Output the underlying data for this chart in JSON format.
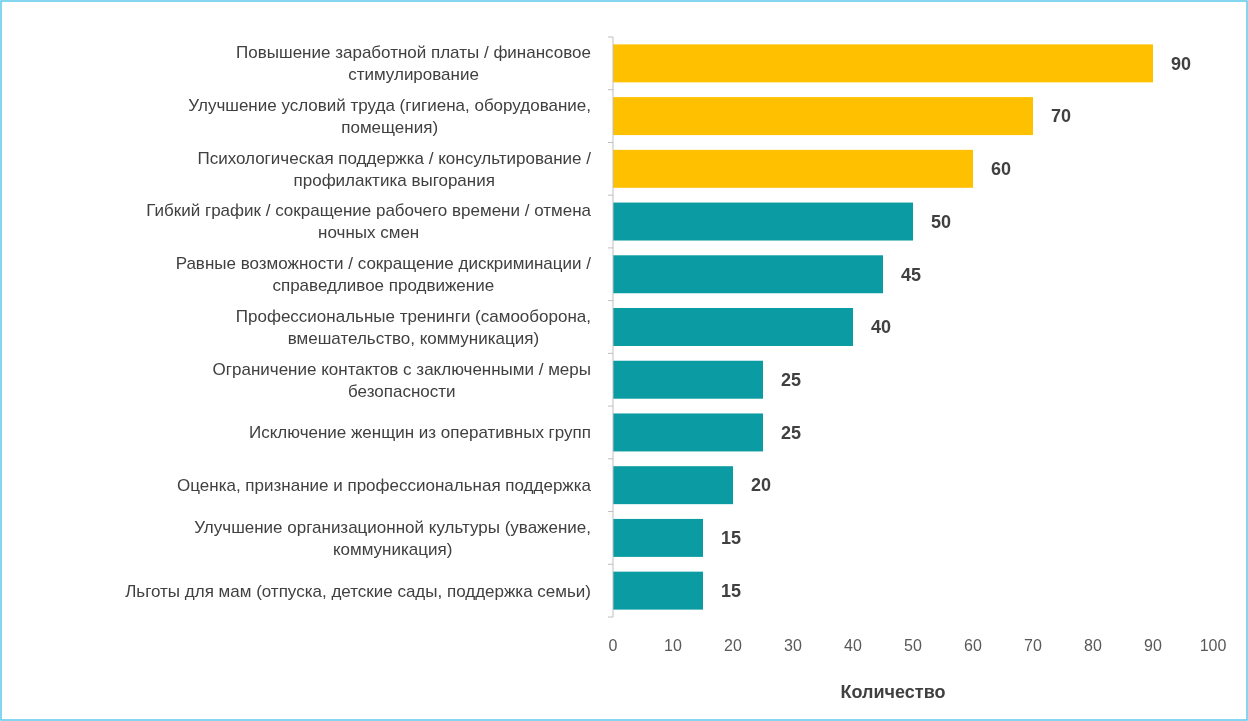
{
  "chart_data": {
    "type": "bar",
    "orientation": "horizontal",
    "xlabel": "Количество",
    "categories": [
      "Повышение заработной платы / финансовое стимулирование",
      "Улучшение условий труда (гигиена, оборудование, помещения)",
      "Психологическая поддержка / консультирование / профилактика выгорания",
      "Гибкий график / сокращение рабочего времени / отмена ночных смен",
      "Равные возможности / сокращение дискриминации / справедливое продвижение",
      "Профессиональные тренинги (самооборона, вмешательство, коммуникация)",
      "Ограничение контактов с заключенными / меры безопасности",
      "Исключение женщин из оперативных групп",
      "Оценка, признание и профессиональная поддержка",
      "Улучшение организационной культуры (уважение, коммуникация)",
      "Льготы для мам (отпуска, детские сады, поддержка семьи)"
    ],
    "values": [
      90,
      70,
      60,
      50,
      45,
      40,
      25,
      25,
      20,
      15,
      15
    ],
    "colors": [
      "#ffc000",
      "#ffc000",
      "#ffc000",
      "#0a9ba3",
      "#0a9ba3",
      "#0a9ba3",
      "#0a9ba3",
      "#0a9ba3",
      "#0a9ba3",
      "#0a9ba3",
      "#0a9ba3"
    ],
    "xlim": [
      0,
      100
    ],
    "xticks": [
      0,
      10,
      20,
      30,
      40,
      50,
      60,
      70,
      80,
      90,
      100
    ],
    "data_labels": true,
    "grid": false
  }
}
